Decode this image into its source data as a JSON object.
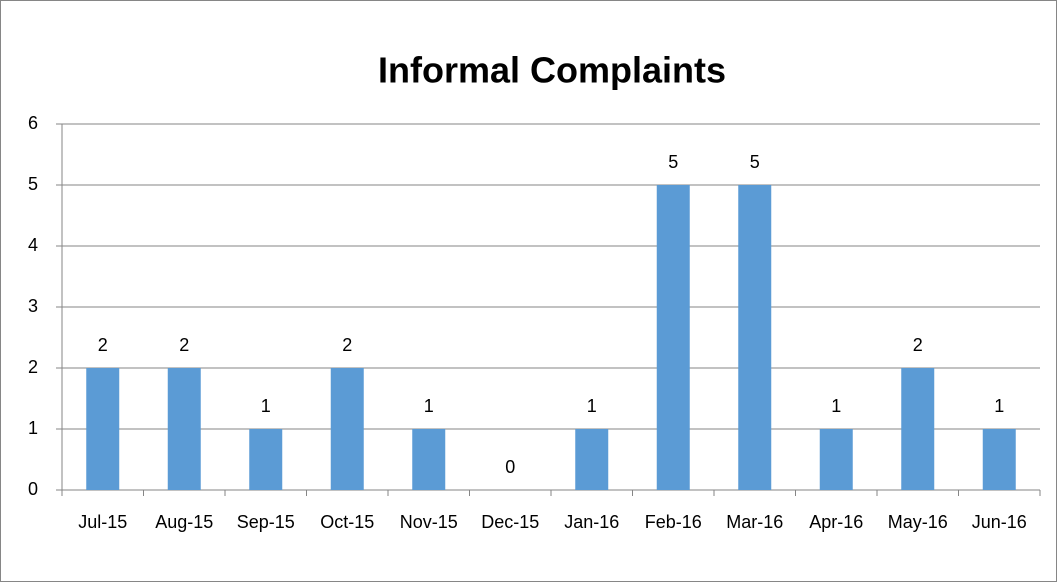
{
  "chart_data": {
    "type": "bar",
    "title": "Informal Complaints",
    "categories": [
      "Jul-15",
      "Aug-15",
      "Sep-15",
      "Oct-15",
      "Nov-15",
      "Dec-15",
      "Jan-16",
      "Feb-16",
      "Mar-16",
      "Apr-16",
      "May-16",
      "Jun-16"
    ],
    "values": [
      2,
      2,
      1,
      2,
      1,
      0,
      1,
      5,
      5,
      1,
      2,
      1
    ],
    "color": "#5b9bd5",
    "ylim": [
      0,
      6
    ],
    "yticks": [
      0,
      1,
      2,
      3,
      4,
      5,
      6
    ],
    "grid": true
  }
}
